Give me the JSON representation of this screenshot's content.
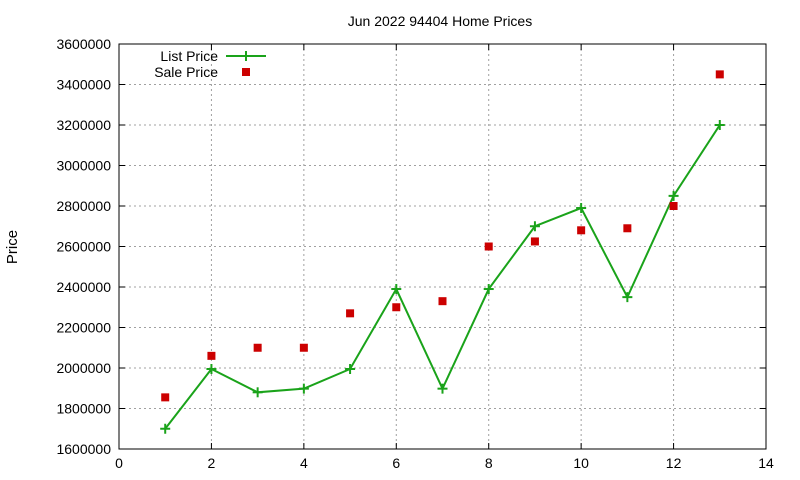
{
  "chart_data": {
    "type": "line",
    "title": "Jun 2022 94404 Home Prices",
    "xlabel": "",
    "ylabel": "Price",
    "xlim": [
      0,
      14
    ],
    "ylim": [
      1600000,
      3600000
    ],
    "x_ticks": [
      0,
      2,
      4,
      6,
      8,
      10,
      12,
      14
    ],
    "y_ticks": [
      1600000,
      1800000,
      2000000,
      2200000,
      2400000,
      2600000,
      2800000,
      3000000,
      3200000,
      3400000,
      3600000
    ],
    "x_tick_labels": [
      "0",
      "2",
      "4",
      "6",
      "8",
      "10",
      "12",
      "14"
    ],
    "y_tick_labels": [
      "1600000",
      "1800000",
      "2000000",
      "2200000",
      "2400000",
      "2600000",
      "2800000",
      "3000000",
      "3200000",
      "3400000",
      "3600000"
    ],
    "grid": true,
    "legend_position": "top-left",
    "series": [
      {
        "name": "List Price",
        "style": "line+plus-markers",
        "color": "#1aa31a",
        "x": [
          1,
          2,
          3,
          4,
          5,
          6,
          7,
          8,
          9,
          10,
          11,
          12,
          13
        ],
        "y": [
          1700000,
          1995000,
          1880000,
          1898000,
          1995000,
          2390000,
          1898000,
          2390000,
          2700000,
          2790000,
          2350000,
          2850000,
          3200000
        ]
      },
      {
        "name": "Sale Price",
        "style": "square-markers",
        "color": "#cc0000",
        "x": [
          1,
          2,
          3,
          4,
          5,
          6,
          7,
          8,
          9,
          10,
          11,
          12,
          13
        ],
        "y": [
          1855000,
          2060000,
          2100000,
          2100000,
          2270000,
          2300000,
          2330000,
          2600000,
          2625000,
          2680000,
          2690000,
          2800000,
          3450000
        ]
      }
    ]
  }
}
